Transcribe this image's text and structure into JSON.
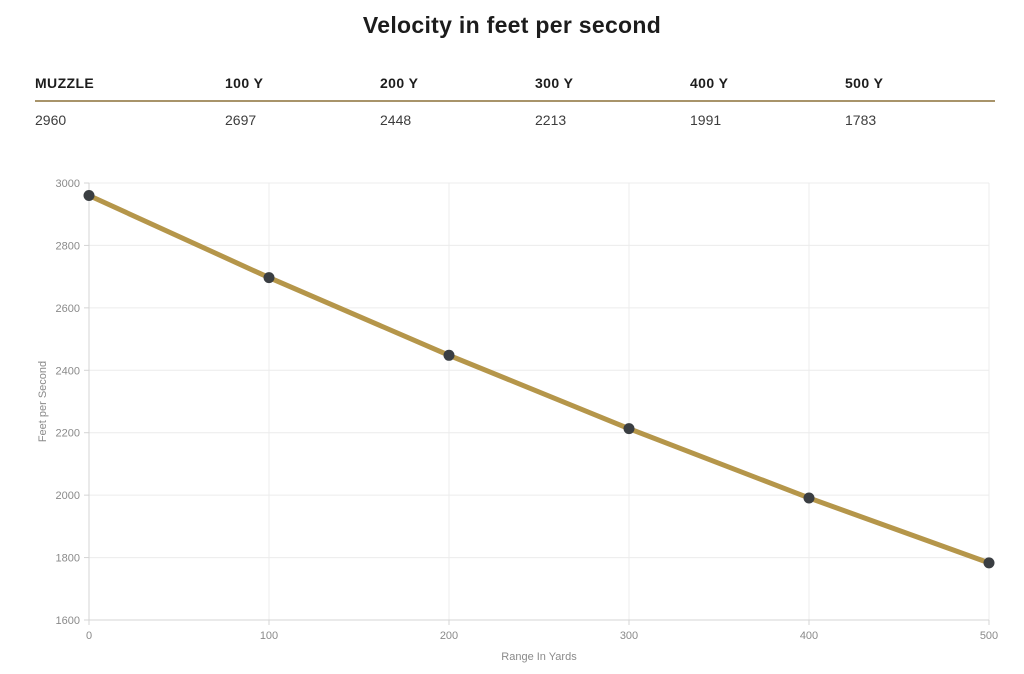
{
  "title": "Velocity in feet per second",
  "table": {
    "headers": [
      "MUZZLE",
      "100 Y",
      "200 Y",
      "300 Y",
      "400 Y",
      "500 Y"
    ],
    "values": [
      "2960",
      "2697",
      "2448",
      "2213",
      "1991",
      "1783"
    ]
  },
  "chart_data": {
    "type": "line",
    "x": [
      0,
      100,
      200,
      300,
      400,
      500
    ],
    "series": [
      {
        "name": "Velocity",
        "values": [
          2960,
          2697,
          2448,
          2213,
          1991,
          1783
        ]
      }
    ],
    "xlabel": "Range In Yards",
    "ylabel": "Feet per Second",
    "xlim": [
      0,
      500
    ],
    "ylim": [
      1600,
      3000
    ],
    "x_ticks": [
      0,
      100,
      200,
      300,
      400,
      500
    ],
    "y_ticks": [
      1600,
      1800,
      2000,
      2200,
      2400,
      2600,
      2800,
      3000
    ],
    "grid": true,
    "legend": "none",
    "line_color": "#b5964a",
    "point_color": "#3a3e42"
  },
  "colors": {
    "accent_gold": "#b5964a",
    "table_rule": "#a8946a",
    "grid_line": "#ececec",
    "axis_line": "#d4d4d4",
    "tick_text": "#8a8a8a",
    "title_text": "#1c1c1c"
  }
}
